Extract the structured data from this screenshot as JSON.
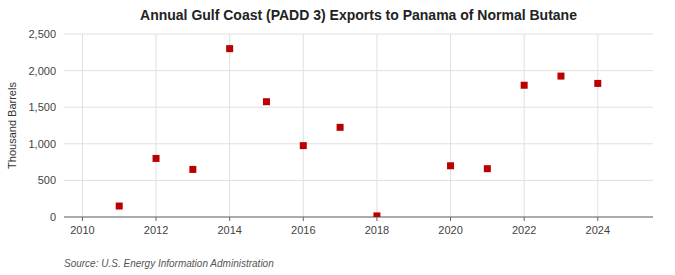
{
  "chart_data": {
    "type": "scatter",
    "title": "Annual Gulf Coast (PADD 3) Exports to Panama of Normal Butane",
    "y_label": "Thousand Barrels",
    "source": "Source: U.S. Energy Information Administration",
    "x": [
      2011,
      2012,
      2013,
      2014,
      2015,
      2016,
      2017,
      2018,
      2020,
      2021,
      2022,
      2023,
      2024
    ],
    "values": [
      150,
      800,
      650,
      2300,
      1575,
      975,
      1225,
      15,
      700,
      660,
      1800,
      1925,
      1825
    ],
    "color": "#bb0000",
    "marker": "square",
    "xlim": [
      2009.5,
      2025.5
    ],
    "xticks": [
      2010,
      2012,
      2014,
      2016,
      2018,
      2020,
      2022,
      2024
    ],
    "ylim": [
      0,
      2500
    ],
    "yticks": [
      0,
      500,
      {
        "value": 1000,
        "label": "1,000"
      },
      {
        "value": 1500,
        "label": "1,500"
      },
      {
        "value": 2000,
        "label": "2,000"
      },
      {
        "value": 2500,
        "label": "2,500"
      }
    ],
    "grid": true
  }
}
